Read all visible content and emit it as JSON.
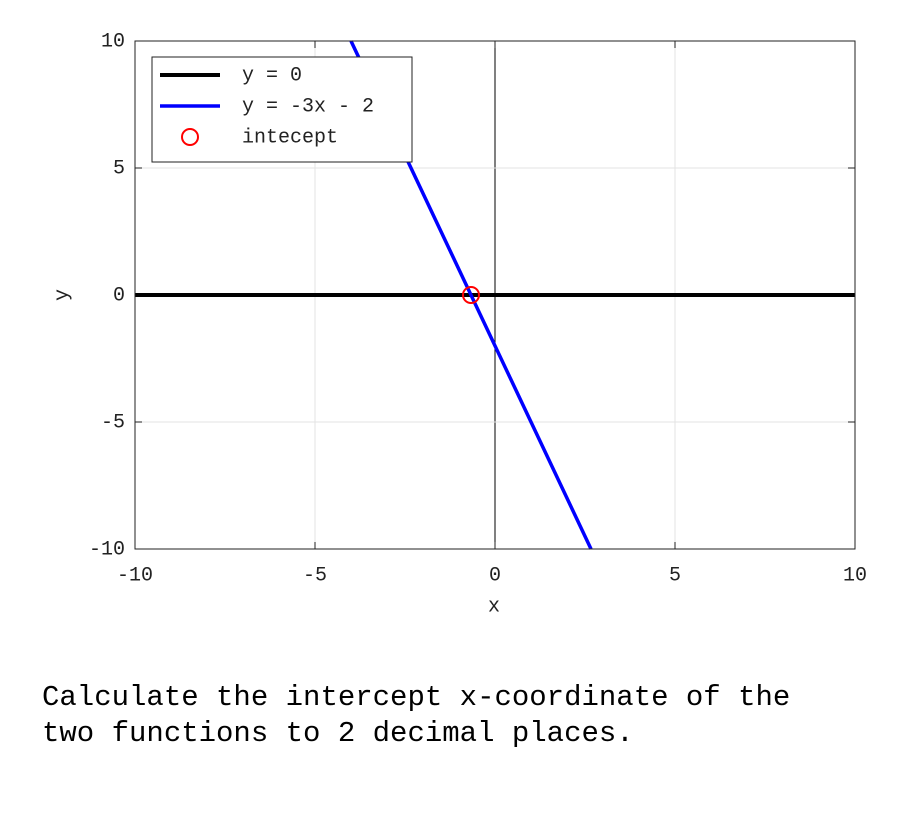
{
  "chart_data": {
    "type": "line",
    "xlabel": "x",
    "ylabel": "y",
    "xlim": [
      -10,
      10
    ],
    "ylim": [
      -10,
      10
    ],
    "xticks": [
      -10,
      -5,
      0,
      5,
      10
    ],
    "yticks": [
      -10,
      -5,
      0,
      5,
      10
    ],
    "grid": true,
    "legend": "upper left",
    "series": [
      {
        "name": "y = 0",
        "color": "#000000",
        "x": [
          -10,
          10
        ],
        "values": [
          0,
          0
        ]
      },
      {
        "name": "y = -3x - 2",
        "color": "#0000ff",
        "x": [
          -4,
          2.667
        ],
        "values": [
          10,
          -10
        ]
      },
      {
        "name": "intecept",
        "type": "scatter",
        "color": "#ff0000",
        "x": [
          -0.667
        ],
        "values": [
          0
        ]
      }
    ]
  },
  "question": "Calculate the intercept x-coordinate of the two functions to 2 decimal places."
}
